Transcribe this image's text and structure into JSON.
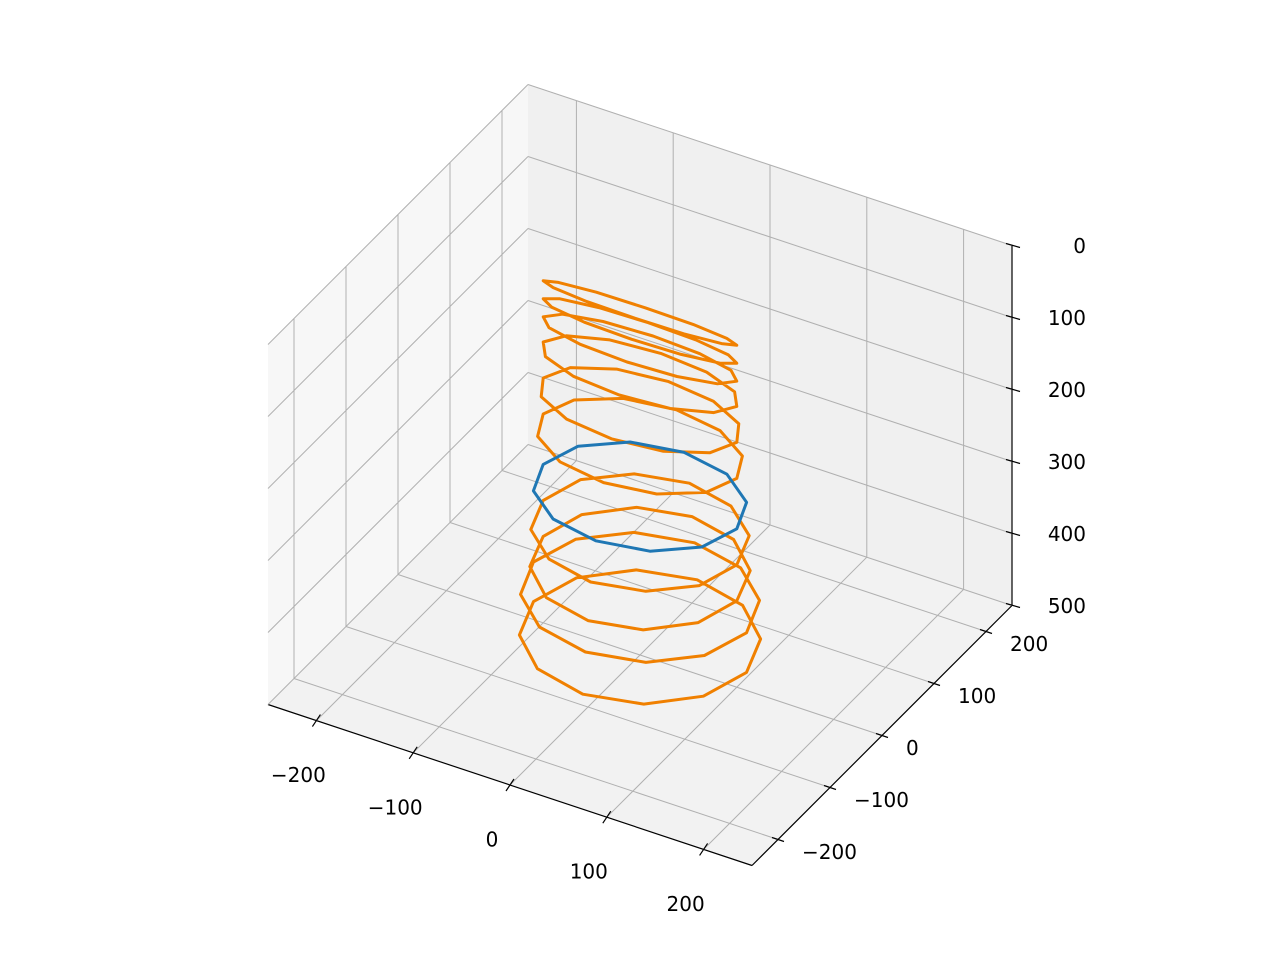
{
  "chart_data": {
    "type": "line3d",
    "xlim": [
      -250,
      250
    ],
    "ylim": [
      -250,
      250
    ],
    "zlim": [
      0,
      500
    ],
    "z_inverted": true,
    "grid": true,
    "xticks": [
      {
        "value": -200,
        "label": "−200"
      },
      {
        "value": -100,
        "label": "−100"
      },
      0,
      100,
      200
    ],
    "yticks": [
      {
        "value": -200,
        "label": "−200"
      },
      {
        "value": -100,
        "label": "−100"
      },
      0,
      100,
      200
    ],
    "zticks": [
      0,
      100,
      200,
      300,
      400,
      500
    ],
    "series": [
      {
        "color": "#f08000",
        "x": [
          100,
          87,
          50,
          0,
          -50,
          -87,
          -100,
          -87,
          -50,
          0,
          50,
          87,
          null,
          100,
          87,
          50,
          0,
          -50,
          -87,
          -100,
          -87,
          -50,
          0,
          50,
          87,
          null,
          100,
          87,
          50,
          0,
          -50,
          -87,
          -100,
          -87,
          -50,
          0,
          50,
          87,
          null,
          100,
          87,
          50,
          0,
          -50,
          -87,
          -100,
          -87,
          -50,
          0,
          50,
          87,
          null,
          100,
          87,
          50,
          0,
          -50,
          -87,
          -100,
          -87,
          -50,
          0,
          50,
          87,
          null,
          100,
          87,
          50,
          0,
          -50,
          -87,
          -100,
          -87,
          -50,
          0,
          50,
          87,
          null,
          100,
          87,
          50,
          0,
          -50,
          -87,
          -100,
          -87,
          -50,
          0,
          50,
          87,
          null,
          100,
          87,
          50,
          0,
          -50,
          -87,
          -100,
          -87,
          -50,
          0,
          50,
          87,
          null,
          110,
          95,
          55,
          0,
          -55,
          -95,
          -110,
          -95,
          -55,
          0,
          55,
          95,
          null,
          110,
          95,
          55,
          0,
          -55,
          -95,
          -110,
          -95,
          -55,
          0,
          55,
          95
        ],
        "y": [
          0,
          5,
          9,
          10,
          9,
          5,
          0,
          -5,
          -9,
          -10,
          -9,
          -5,
          null,
          0,
          8,
          14,
          16,
          14,
          8,
          0,
          -8,
          -14,
          -16,
          -14,
          -8,
          null,
          0,
          13,
          22,
          25,
          22,
          13,
          0,
          -13,
          -22,
          -25,
          -22,
          -13,
          null,
          0,
          20,
          35,
          40,
          35,
          20,
          0,
          -20,
          -35,
          -40,
          -35,
          -20,
          null,
          0,
          28,
          48,
          55,
          48,
          28,
          0,
          -28,
          -48,
          -55,
          -48,
          -28,
          null,
          0,
          35,
          61,
          70,
          61,
          35,
          0,
          -35,
          -61,
          -70,
          -61,
          -35,
          null,
          0,
          48,
          82,
          95,
          82,
          48,
          0,
          -48,
          -82,
          -95,
          -82,
          -48,
          null,
          0,
          50,
          87,
          100,
          87,
          50,
          0,
          -50,
          -87,
          -100,
          -87,
          -50,
          null,
          0,
          53,
          91,
          105,
          91,
          53,
          0,
          -53,
          -91,
          -105,
          -91,
          -53,
          null,
          0,
          55,
          95,
          110,
          95,
          55,
          0,
          -55,
          -95,
          -110,
          -95,
          -55
        ],
        "z": [
          25,
          25,
          25,
          25,
          25,
          25,
          25,
          25,
          25,
          25,
          25,
          25,
          null,
          50,
          50,
          50,
          50,
          50,
          50,
          50,
          50,
          50,
          50,
          50,
          50,
          null,
          75,
          75,
          75,
          75,
          75,
          75,
          75,
          75,
          75,
          75,
          75,
          75,
          null,
          110,
          110,
          110,
          110,
          110,
          110,
          110,
          110,
          110,
          110,
          110,
          110,
          null,
          160,
          160,
          160,
          160,
          160,
          160,
          160,
          160,
          160,
          160,
          160,
          160,
          null,
          210,
          210,
          210,
          210,
          210,
          210,
          210,
          210,
          210,
          210,
          210,
          210,
          null,
          330,
          330,
          330,
          330,
          330,
          330,
          330,
          330,
          330,
          330,
          330,
          330,
          null,
          380,
          380,
          380,
          380,
          380,
          380,
          380,
          380,
          380,
          380,
          380,
          380,
          null,
          420,
          420,
          420,
          420,
          420,
          420,
          420,
          420,
          420,
          420,
          420,
          420,
          null,
          475,
          475,
          475,
          475,
          475,
          475,
          475,
          475,
          475,
          475,
          475,
          475
        ]
      },
      {
        "color": "#1f77b4",
        "x": [
          100,
          87,
          50,
          0,
          -50,
          -87,
          -100,
          -87,
          -50,
          0,
          50,
          87
        ],
        "y": [
          0,
          43,
          74,
          85,
          74,
          43,
          0,
          -43,
          -74,
          -85,
          -74,
          -43
        ],
        "z": [
          280,
          280,
          280,
          280,
          280,
          280,
          280,
          280,
          280,
          280,
          280,
          280
        ]
      }
    ]
  }
}
